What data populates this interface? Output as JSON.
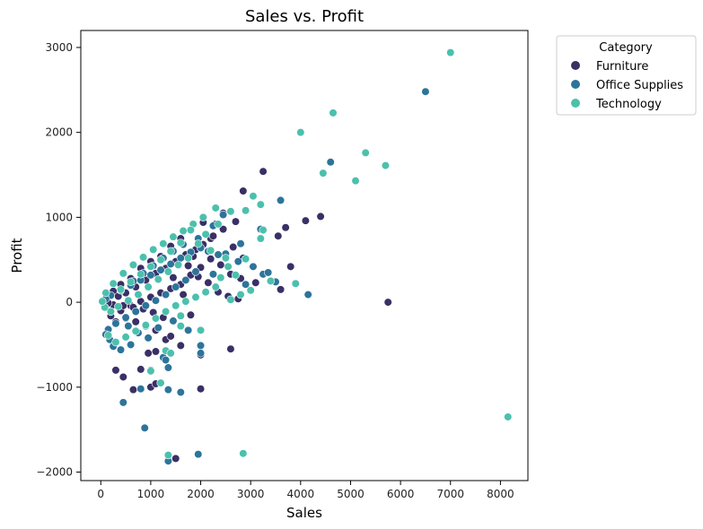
{
  "chart_data": {
    "type": "scatter",
    "title": "Sales vs. Profit",
    "xlabel": "Sales",
    "ylabel": "Profit",
    "xlim": [
      -400,
      8550
    ],
    "ylim": [
      -2100,
      3200
    ],
    "xticks": [
      0,
      1000,
      2000,
      3000,
      4000,
      5000,
      6000,
      7000,
      8000
    ],
    "yticks": [
      -2000,
      -1000,
      0,
      1000,
      2000,
      3000
    ],
    "xtick_labels": [
      "0",
      "1000",
      "2000",
      "3000",
      "4000",
      "5000",
      "6000",
      "7000",
      "8000"
    ],
    "ytick_labels": [
      "−2000",
      "−1000",
      "0",
      "1000",
      "2000",
      "3000"
    ],
    "grid": false,
    "legend": {
      "title": "Category",
      "placement": "outside-top-right"
    },
    "series": [
      {
        "name": "Furniture",
        "color": "#3a2f66",
        "points": [
          [
            3250,
            1540
          ],
          [
            2850,
            1310
          ],
          [
            2450,
            1050
          ],
          [
            2300,
            920
          ],
          [
            2050,
            940
          ],
          [
            1600,
            750
          ],
          [
            1400,
            660
          ],
          [
            1200,
            540
          ],
          [
            1000,
            480
          ],
          [
            800,
            400
          ],
          [
            600,
            280
          ],
          [
            400,
            210
          ],
          [
            250,
            130
          ],
          [
            120,
            60
          ],
          [
            50,
            20
          ],
          [
            4400,
            1010
          ],
          [
            4100,
            960
          ],
          [
            3700,
            880
          ],
          [
            3550,
            780
          ],
          [
            3800,
            420
          ],
          [
            3600,
            150
          ],
          [
            2800,
            280
          ],
          [
            2600,
            330
          ],
          [
            2400,
            440
          ],
          [
            2200,
            510
          ],
          [
            2000,
            410
          ],
          [
            1800,
            320
          ],
          [
            1600,
            210
          ],
          [
            1400,
            160
          ],
          [
            1200,
            110
          ],
          [
            1000,
            60
          ],
          [
            800,
            10
          ],
          [
            600,
            -40
          ],
          [
            400,
            -100
          ],
          [
            200,
            -160
          ],
          [
            1100,
            -330
          ],
          [
            900,
            -280
          ],
          [
            700,
            -230
          ],
          [
            500,
            -190
          ],
          [
            300,
            -230
          ],
          [
            1300,
            -440
          ],
          [
            1600,
            -510
          ],
          [
            1400,
            -400
          ],
          [
            1800,
            -150
          ],
          [
            2600,
            -550
          ],
          [
            2000,
            -620
          ],
          [
            1100,
            -580
          ],
          [
            950,
            -600
          ],
          [
            800,
            -790
          ],
          [
            300,
            -800
          ],
          [
            450,
            -880
          ],
          [
            650,
            -1030
          ],
          [
            1000,
            -1000
          ],
          [
            1100,
            -960
          ],
          [
            2000,
            -1020
          ],
          [
            1500,
            -1840
          ],
          [
            5750,
            0
          ],
          [
            2700,
            950
          ],
          [
            2200,
            750
          ],
          [
            1900,
            620
          ],
          [
            1700,
            560
          ],
          [
            1500,
            480
          ],
          [
            1300,
            400
          ],
          [
            1100,
            340
          ],
          [
            900,
            260
          ],
          [
            700,
            180
          ],
          [
            500,
            110
          ],
          [
            350,
            70
          ],
          [
            1750,
            430
          ],
          [
            1950,
            300
          ],
          [
            2150,
            230
          ],
          [
            2350,
            120
          ],
          [
            2550,
            70
          ],
          [
            2750,
            40
          ],
          [
            3100,
            230
          ],
          [
            1250,
            -180
          ],
          [
            1050,
            -120
          ],
          [
            850,
            -80
          ],
          [
            650,
            -60
          ],
          [
            450,
            -40
          ],
          [
            250,
            -30
          ],
          [
            150,
            -10
          ],
          [
            1650,
            90
          ],
          [
            1450,
            290
          ],
          [
            1850,
            540
          ],
          [
            2050,
            680
          ],
          [
            2250,
            780
          ],
          [
            2450,
            860
          ],
          [
            2650,
            650
          ],
          [
            2850,
            520
          ]
        ]
      },
      {
        "name": "Office Supplies",
        "color": "#2d749a",
        "points": [
          [
            6500,
            2480
          ],
          [
            4600,
            1650
          ],
          [
            3600,
            1200
          ],
          [
            3200,
            860
          ],
          [
            3500,
            240
          ],
          [
            4150,
            90
          ],
          [
            3250,
            330
          ],
          [
            2900,
            210
          ],
          [
            2500,
            570
          ],
          [
            2250,
            330
          ],
          [
            2000,
            640
          ],
          [
            1800,
            590
          ],
          [
            1600,
            520
          ],
          [
            1400,
            450
          ],
          [
            1200,
            380
          ],
          [
            1000,
            320
          ],
          [
            800,
            260
          ],
          [
            600,
            200
          ],
          [
            400,
            140
          ],
          [
            200,
            80
          ],
          [
            100,
            40
          ],
          [
            1900,
            360
          ],
          [
            1700,
            260
          ],
          [
            1500,
            180
          ],
          [
            1300,
            90
          ],
          [
            1100,
            20
          ],
          [
            900,
            -40
          ],
          [
            700,
            -110
          ],
          [
            500,
            -180
          ],
          [
            300,
            -250
          ],
          [
            150,
            -320
          ],
          [
            1750,
            -330
          ],
          [
            2000,
            -510
          ],
          [
            2000,
            -600
          ],
          [
            1250,
            -650
          ],
          [
            1350,
            -770
          ],
          [
            1350,
            -1030
          ],
          [
            1600,
            -1060
          ],
          [
            800,
            -1020
          ],
          [
            450,
            -1180
          ],
          [
            1000,
            -800
          ],
          [
            1300,
            -680
          ],
          [
            880,
            -1480
          ],
          [
            1950,
            -1790
          ],
          [
            1350,
            -1870
          ],
          [
            3350,
            350
          ],
          [
            3050,
            420
          ],
          [
            2750,
            480
          ],
          [
            2350,
            560
          ],
          [
            2150,
            600
          ],
          [
            600,
            -500
          ],
          [
            400,
            -560
          ],
          [
            250,
            -520
          ],
          [
            180,
            -440
          ],
          [
            100,
            -380
          ],
          [
            2800,
            690
          ],
          [
            2450,
            1030
          ],
          [
            2250,
            900
          ],
          [
            1950,
            750
          ],
          [
            1650,
            680
          ],
          [
            1450,
            600
          ],
          [
            1250,
            520
          ],
          [
            1050,
            430
          ],
          [
            850,
            340
          ],
          [
            650,
            250
          ],
          [
            550,
            -280
          ],
          [
            750,
            -360
          ],
          [
            950,
            -420
          ],
          [
            1150,
            -300
          ],
          [
            1450,
            -220
          ]
        ]
      },
      {
        "name": "Technology",
        "color": "#4cc0ad",
        "points": [
          [
            7000,
            2940
          ],
          [
            4650,
            2230
          ],
          [
            4000,
            2000
          ],
          [
            5300,
            1760
          ],
          [
            5700,
            1610
          ],
          [
            4450,
            1520
          ],
          [
            5100,
            1430
          ],
          [
            3050,
            1250
          ],
          [
            3200,
            1150
          ],
          [
            3250,
            850
          ],
          [
            3200,
            750
          ],
          [
            2900,
            1080
          ],
          [
            2300,
            1110
          ],
          [
            2600,
            1070
          ],
          [
            2050,
            1000
          ],
          [
            1850,
            920
          ],
          [
            1650,
            840
          ],
          [
            1450,
            770
          ],
          [
            1250,
            690
          ],
          [
            1050,
            620
          ],
          [
            850,
            530
          ],
          [
            650,
            440
          ],
          [
            450,
            340
          ],
          [
            250,
            220
          ],
          [
            100,
            110
          ],
          [
            2900,
            510
          ],
          [
            2550,
            420
          ],
          [
            2400,
            290
          ],
          [
            2300,
            180
          ],
          [
            2100,
            120
          ],
          [
            1900,
            60
          ],
          [
            1700,
            10
          ],
          [
            1500,
            -40
          ],
          [
            1300,
            -110
          ],
          [
            1100,
            -190
          ],
          [
            900,
            -270
          ],
          [
            700,
            -340
          ],
          [
            500,
            -410
          ],
          [
            300,
            -470
          ],
          [
            150,
            -390
          ],
          [
            3400,
            250
          ],
          [
            3000,
            140
          ],
          [
            2800,
            90
          ],
          [
            2600,
            30
          ],
          [
            1600,
            -160
          ],
          [
            1600,
            -280
          ],
          [
            2000,
            -330
          ],
          [
            1300,
            -570
          ],
          [
            1400,
            -600
          ],
          [
            1200,
            -950
          ],
          [
            1000,
            -810
          ],
          [
            1350,
            -1800
          ],
          [
            2850,
            -1780
          ],
          [
            8150,
            -1350
          ],
          [
            3900,
            220
          ],
          [
            2700,
            320
          ],
          [
            2500,
            520
          ],
          [
            2200,
            610
          ],
          [
            1950,
            690
          ],
          [
            1750,
            520
          ],
          [
            1550,
            440
          ],
          [
            1350,
            360
          ],
          [
            1150,
            270
          ],
          [
            950,
            180
          ],
          [
            750,
            90
          ],
          [
            550,
            20
          ],
          [
            350,
            -50
          ],
          [
            200,
            -110
          ],
          [
            80,
            -60
          ],
          [
            30,
            10
          ],
          [
            1800,
            850
          ],
          [
            1600,
            700
          ],
          [
            1400,
            600
          ],
          [
            1200,
            500
          ],
          [
            1000,
            420
          ],
          [
            800,
            330
          ],
          [
            600,
            240
          ],
          [
            400,
            150
          ],
          [
            2100,
            800
          ],
          [
            2350,
            920
          ]
        ]
      }
    ]
  }
}
